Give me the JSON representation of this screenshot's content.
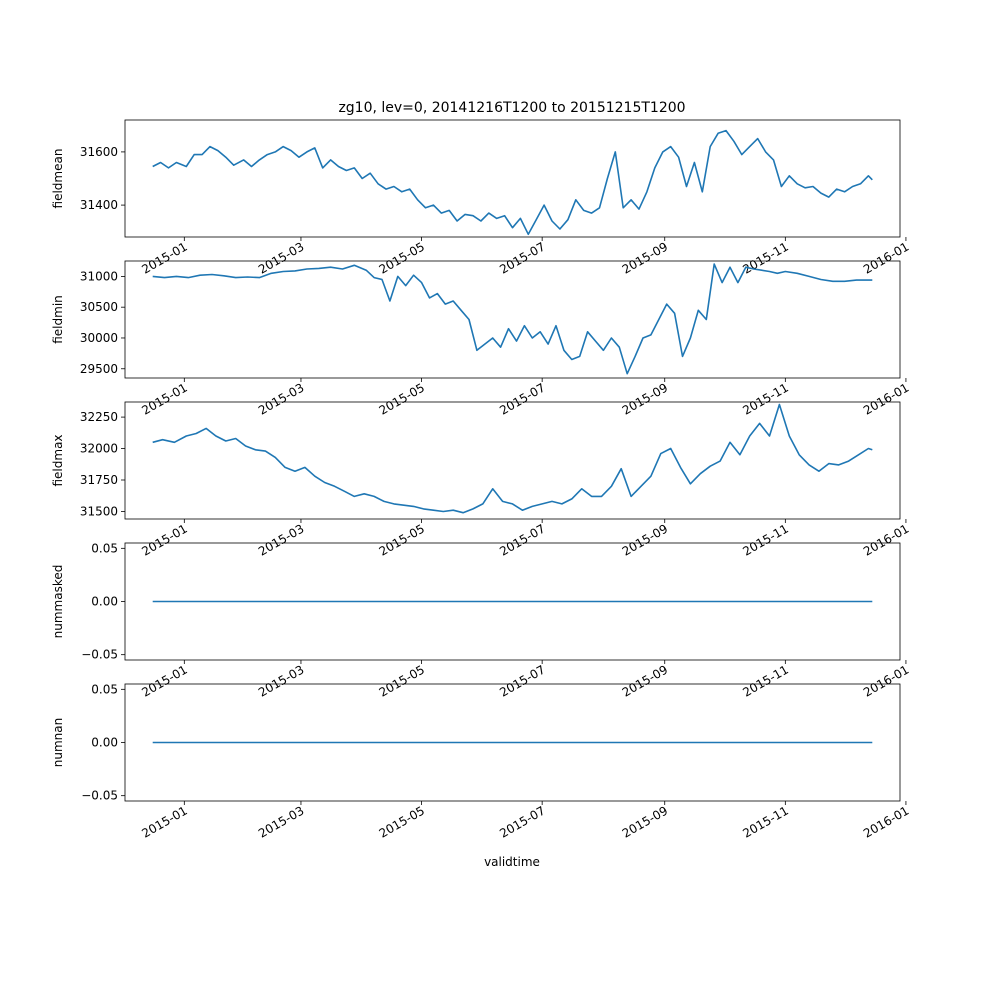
{
  "figure": {
    "title": "zg10, lev=0, 20141216T1200 to 20151215T1200",
    "xlabel": "validtime"
  },
  "chart_data": [
    {
      "type": "line",
      "ylabel": "fieldmean",
      "xlim": [
        "2014-12-02",
        "2015-12-29"
      ],
      "ylim": [
        31280,
        31720
      ],
      "yticks": [
        31400,
        31600
      ],
      "ytick_labels": [
        "31400",
        "31600"
      ],
      "xticks": [
        "2015-01-01",
        "2015-03-01",
        "2015-05-01",
        "2015-07-01",
        "2015-09-01",
        "2015-11-01",
        "2016-01-01"
      ],
      "xtick_labels": [
        "2015-01",
        "2015-03",
        "2015-05",
        "2015-07",
        "2015-09",
        "2015-11",
        "2016-01"
      ],
      "color": "#1f77b4",
      "points": [
        [
          "2014-12-16",
          31545
        ],
        [
          "2014-12-20",
          31560
        ],
        [
          "2014-12-24",
          31540
        ],
        [
          "2014-12-28",
          31560
        ],
        [
          "2015-01-02",
          31545
        ],
        [
          "2015-01-06",
          31590
        ],
        [
          "2015-01-10",
          31590
        ],
        [
          "2015-01-14",
          31620
        ],
        [
          "2015-01-18",
          31605
        ],
        [
          "2015-01-22",
          31580
        ],
        [
          "2015-01-26",
          31550
        ],
        [
          "2015-01-31",
          31570
        ],
        [
          "2015-02-04",
          31545
        ],
        [
          "2015-02-08",
          31570
        ],
        [
          "2015-02-12",
          31590
        ],
        [
          "2015-02-16",
          31600
        ],
        [
          "2015-02-20",
          31620
        ],
        [
          "2015-02-24",
          31605
        ],
        [
          "2015-02-28",
          31580
        ],
        [
          "2015-03-04",
          31600
        ],
        [
          "2015-03-08",
          31615
        ],
        [
          "2015-03-12",
          31540
        ],
        [
          "2015-03-16",
          31570
        ],
        [
          "2015-03-20",
          31545
        ],
        [
          "2015-03-24",
          31530
        ],
        [
          "2015-03-28",
          31540
        ],
        [
          "2015-04-01",
          31500
        ],
        [
          "2015-04-05",
          31520
        ],
        [
          "2015-04-09",
          31480
        ],
        [
          "2015-04-13",
          31460
        ],
        [
          "2015-04-17",
          31470
        ],
        [
          "2015-04-21",
          31450
        ],
        [
          "2015-04-25",
          31460
        ],
        [
          "2015-04-29",
          31420
        ],
        [
          "2015-05-03",
          31390
        ],
        [
          "2015-05-07",
          31400
        ],
        [
          "2015-05-11",
          31370
        ],
        [
          "2015-05-15",
          31380
        ],
        [
          "2015-05-19",
          31340
        ],
        [
          "2015-05-23",
          31365
        ],
        [
          "2015-05-27",
          31360
        ],
        [
          "2015-05-31",
          31340
        ],
        [
          "2015-06-04",
          31370
        ],
        [
          "2015-06-08",
          31350
        ],
        [
          "2015-06-12",
          31360
        ],
        [
          "2015-06-16",
          31315
        ],
        [
          "2015-06-20",
          31350
        ],
        [
          "2015-06-24",
          31290
        ],
        [
          "2015-06-28",
          31345
        ],
        [
          "2015-07-02",
          31400
        ],
        [
          "2015-07-06",
          31340
        ],
        [
          "2015-07-10",
          31310
        ],
        [
          "2015-07-14",
          31345
        ],
        [
          "2015-07-18",
          31420
        ],
        [
          "2015-07-22",
          31380
        ],
        [
          "2015-07-26",
          31370
        ],
        [
          "2015-07-30",
          31390
        ],
        [
          "2015-08-03",
          31500
        ],
        [
          "2015-08-07",
          31600
        ],
        [
          "2015-08-11",
          31390
        ],
        [
          "2015-08-15",
          31420
        ],
        [
          "2015-08-19",
          31385
        ],
        [
          "2015-08-23",
          31450
        ],
        [
          "2015-08-27",
          31540
        ],
        [
          "2015-08-31",
          31600
        ],
        [
          "2015-09-04",
          31620
        ],
        [
          "2015-09-08",
          31580
        ],
        [
          "2015-09-12",
          31470
        ],
        [
          "2015-09-16",
          31560
        ],
        [
          "2015-09-20",
          31450
        ],
        [
          "2015-09-24",
          31620
        ],
        [
          "2015-09-28",
          31670
        ],
        [
          "2015-10-02",
          31680
        ],
        [
          "2015-10-06",
          31640
        ],
        [
          "2015-10-10",
          31590
        ],
        [
          "2015-10-14",
          31620
        ],
        [
          "2015-10-18",
          31650
        ],
        [
          "2015-10-22",
          31600
        ],
        [
          "2015-10-26",
          31570
        ],
        [
          "2015-10-30",
          31470
        ],
        [
          "2015-11-03",
          31510
        ],
        [
          "2015-11-07",
          31480
        ],
        [
          "2015-11-11",
          31465
        ],
        [
          "2015-11-15",
          31470
        ],
        [
          "2015-11-19",
          31445
        ],
        [
          "2015-11-23",
          31430
        ],
        [
          "2015-11-27",
          31460
        ],
        [
          "2015-12-01",
          31450
        ],
        [
          "2015-12-05",
          31470
        ],
        [
          "2015-12-09",
          31480
        ],
        [
          "2015-12-13",
          31510
        ],
        [
          "2015-12-15",
          31495
        ]
      ]
    },
    {
      "type": "line",
      "ylabel": "fieldmin",
      "xlim": [
        "2014-12-02",
        "2015-12-29"
      ],
      "ylim": [
        29350,
        31250
      ],
      "yticks": [
        29500,
        30000,
        30500,
        31000
      ],
      "ytick_labels": [
        "29500",
        "30000",
        "30500",
        "31000"
      ],
      "xticks": [
        "2015-01-01",
        "2015-03-01",
        "2015-05-01",
        "2015-07-01",
        "2015-09-01",
        "2015-11-01",
        "2016-01-01"
      ],
      "xtick_labels": [
        "2015-01",
        "2015-03",
        "2015-05",
        "2015-07",
        "2015-09",
        "2015-11",
        "2016-01"
      ],
      "color": "#1f77b4",
      "points": [
        [
          "2014-12-16",
          31000
        ],
        [
          "2014-12-22",
          30980
        ],
        [
          "2014-12-28",
          31000
        ],
        [
          "2015-01-03",
          30980
        ],
        [
          "2015-01-09",
          31020
        ],
        [
          "2015-01-15",
          31030
        ],
        [
          "2015-01-21",
          31010
        ],
        [
          "2015-01-27",
          30980
        ],
        [
          "2015-02-02",
          30990
        ],
        [
          "2015-02-08",
          30980
        ],
        [
          "2015-02-14",
          31050
        ],
        [
          "2015-02-20",
          31080
        ],
        [
          "2015-02-26",
          31090
        ],
        [
          "2015-03-04",
          31120
        ],
        [
          "2015-03-10",
          31130
        ],
        [
          "2015-03-16",
          31150
        ],
        [
          "2015-03-22",
          31120
        ],
        [
          "2015-03-28",
          31180
        ],
        [
          "2015-04-03",
          31100
        ],
        [
          "2015-04-07",
          30980
        ],
        [
          "2015-04-11",
          30950
        ],
        [
          "2015-04-15",
          30600
        ],
        [
          "2015-04-19",
          31000
        ],
        [
          "2015-04-23",
          30850
        ],
        [
          "2015-04-27",
          31020
        ],
        [
          "2015-05-01",
          30900
        ],
        [
          "2015-05-05",
          30650
        ],
        [
          "2015-05-09",
          30720
        ],
        [
          "2015-05-13",
          30550
        ],
        [
          "2015-05-17",
          30600
        ],
        [
          "2015-05-21",
          30450
        ],
        [
          "2015-05-25",
          30300
        ],
        [
          "2015-05-29",
          29800
        ],
        [
          "2015-06-02",
          29900
        ],
        [
          "2015-06-06",
          30000
        ],
        [
          "2015-06-10",
          29850
        ],
        [
          "2015-06-14",
          30150
        ],
        [
          "2015-06-18",
          29950
        ],
        [
          "2015-06-22",
          30200
        ],
        [
          "2015-06-26",
          30000
        ],
        [
          "2015-06-30",
          30100
        ],
        [
          "2015-07-04",
          29900
        ],
        [
          "2015-07-08",
          30200
        ],
        [
          "2015-07-12",
          29800
        ],
        [
          "2015-07-16",
          29650
        ],
        [
          "2015-07-20",
          29700
        ],
        [
          "2015-07-24",
          30100
        ],
        [
          "2015-07-28",
          29950
        ],
        [
          "2015-08-01",
          29800
        ],
        [
          "2015-08-05",
          30000
        ],
        [
          "2015-08-09",
          29850
        ],
        [
          "2015-08-13",
          29420
        ],
        [
          "2015-08-17",
          29700
        ],
        [
          "2015-08-21",
          30000
        ],
        [
          "2015-08-25",
          30050
        ],
        [
          "2015-08-29",
          30300
        ],
        [
          "2015-09-02",
          30550
        ],
        [
          "2015-09-06",
          30400
        ],
        [
          "2015-09-10",
          29700
        ],
        [
          "2015-09-14",
          30000
        ],
        [
          "2015-09-18",
          30450
        ],
        [
          "2015-09-22",
          30300
        ],
        [
          "2015-09-26",
          31200
        ],
        [
          "2015-09-30",
          30900
        ],
        [
          "2015-10-04",
          31150
        ],
        [
          "2015-10-08",
          30900
        ],
        [
          "2015-10-12",
          31150
        ],
        [
          "2015-10-16",
          31120
        ],
        [
          "2015-10-20",
          31100
        ],
        [
          "2015-10-24",
          31080
        ],
        [
          "2015-10-28",
          31050
        ],
        [
          "2015-11-01",
          31080
        ],
        [
          "2015-11-07",
          31050
        ],
        [
          "2015-11-13",
          31000
        ],
        [
          "2015-11-19",
          30950
        ],
        [
          "2015-11-25",
          30920
        ],
        [
          "2015-12-01",
          30920
        ],
        [
          "2015-12-07",
          30940
        ],
        [
          "2015-12-15",
          30940
        ]
      ]
    },
    {
      "type": "line",
      "ylabel": "fieldmax",
      "xlim": [
        "2014-12-02",
        "2015-12-29"
      ],
      "ylim": [
        31440,
        32370
      ],
      "yticks": [
        31500,
        31750,
        32000,
        32250
      ],
      "ytick_labels": [
        "31500",
        "31750",
        "32000",
        "32250"
      ],
      "xticks": [
        "2015-01-01",
        "2015-03-01",
        "2015-05-01",
        "2015-07-01",
        "2015-09-01",
        "2015-11-01",
        "2016-01-01"
      ],
      "xtick_labels": [
        "2015-01",
        "2015-03",
        "2015-05",
        "2015-07",
        "2015-09",
        "2015-11",
        "2016-01"
      ],
      "color": "#1f77b4",
      "points": [
        [
          "2014-12-16",
          32050
        ],
        [
          "2014-12-21",
          32070
        ],
        [
          "2014-12-27",
          32050
        ],
        [
          "2015-01-02",
          32100
        ],
        [
          "2015-01-07",
          32120
        ],
        [
          "2015-01-12",
          32160
        ],
        [
          "2015-01-17",
          32100
        ],
        [
          "2015-01-22",
          32060
        ],
        [
          "2015-01-27",
          32080
        ],
        [
          "2015-02-01",
          32020
        ],
        [
          "2015-02-06",
          31990
        ],
        [
          "2015-02-11",
          31980
        ],
        [
          "2015-02-16",
          31930
        ],
        [
          "2015-02-21",
          31850
        ],
        [
          "2015-02-26",
          31820
        ],
        [
          "2015-03-03",
          31850
        ],
        [
          "2015-03-08",
          31780
        ],
        [
          "2015-03-13",
          31730
        ],
        [
          "2015-03-18",
          31700
        ],
        [
          "2015-03-23",
          31660
        ],
        [
          "2015-03-28",
          31620
        ],
        [
          "2015-04-02",
          31640
        ],
        [
          "2015-04-07",
          31620
        ],
        [
          "2015-04-12",
          31580
        ],
        [
          "2015-04-17",
          31560
        ],
        [
          "2015-04-22",
          31550
        ],
        [
          "2015-04-27",
          31540
        ],
        [
          "2015-05-02",
          31520
        ],
        [
          "2015-05-07",
          31510
        ],
        [
          "2015-05-12",
          31500
        ],
        [
          "2015-05-17",
          31510
        ],
        [
          "2015-05-22",
          31490
        ],
        [
          "2015-05-27",
          31520
        ],
        [
          "2015-06-01",
          31560
        ],
        [
          "2015-06-06",
          31680
        ],
        [
          "2015-06-11",
          31580
        ],
        [
          "2015-06-16",
          31560
        ],
        [
          "2015-06-21",
          31510
        ],
        [
          "2015-06-26",
          31540
        ],
        [
          "2015-07-01",
          31560
        ],
        [
          "2015-07-06",
          31580
        ],
        [
          "2015-07-11",
          31560
        ],
        [
          "2015-07-16",
          31600
        ],
        [
          "2015-07-21",
          31680
        ],
        [
          "2015-07-26",
          31620
        ],
        [
          "2015-07-31",
          31620
        ],
        [
          "2015-08-05",
          31700
        ],
        [
          "2015-08-10",
          31840
        ],
        [
          "2015-08-15",
          31620
        ],
        [
          "2015-08-20",
          31700
        ],
        [
          "2015-08-25",
          31780
        ],
        [
          "2015-08-30",
          31960
        ],
        [
          "2015-09-04",
          32000
        ],
        [
          "2015-09-09",
          31850
        ],
        [
          "2015-09-14",
          31720
        ],
        [
          "2015-09-19",
          31800
        ],
        [
          "2015-09-24",
          31860
        ],
        [
          "2015-09-29",
          31900
        ],
        [
          "2015-10-04",
          32050
        ],
        [
          "2015-10-09",
          31950
        ],
        [
          "2015-10-14",
          32100
        ],
        [
          "2015-10-19",
          32200
        ],
        [
          "2015-10-24",
          32100
        ],
        [
          "2015-10-29",
          32350
        ],
        [
          "2015-11-03",
          32100
        ],
        [
          "2015-11-08",
          31950
        ],
        [
          "2015-11-13",
          31870
        ],
        [
          "2015-11-18",
          31820
        ],
        [
          "2015-11-23",
          31880
        ],
        [
          "2015-11-28",
          31870
        ],
        [
          "2015-12-03",
          31900
        ],
        [
          "2015-12-08",
          31950
        ],
        [
          "2015-12-13",
          32000
        ],
        [
          "2015-12-15",
          31990
        ]
      ]
    },
    {
      "type": "line",
      "ylabel": "nummasked",
      "xlim": [
        "2014-12-02",
        "2015-12-29"
      ],
      "ylim": [
        -0.055,
        0.055
      ],
      "yticks": [
        -0.05,
        0.0,
        0.05
      ],
      "ytick_labels": [
        "−0.05",
        "0.00",
        "0.05"
      ],
      "xticks": [
        "2015-01-01",
        "2015-03-01",
        "2015-05-01",
        "2015-07-01",
        "2015-09-01",
        "2015-11-01",
        "2016-01-01"
      ],
      "xtick_labels": [
        "2015-01",
        "2015-03",
        "2015-05",
        "2015-07",
        "2015-09",
        "2015-11",
        "2016-01"
      ],
      "color": "#1f77b4",
      "points": [
        [
          "2014-12-16",
          0.0
        ],
        [
          "2015-12-15",
          0.0
        ]
      ]
    },
    {
      "type": "line",
      "ylabel": "numnan",
      "xlim": [
        "2014-12-02",
        "2015-12-29"
      ],
      "ylim": [
        -0.055,
        0.055
      ],
      "yticks": [
        -0.05,
        0.0,
        0.05
      ],
      "ytick_labels": [
        "−0.05",
        "0.00",
        "0.05"
      ],
      "xticks": [
        "2015-01-01",
        "2015-03-01",
        "2015-05-01",
        "2015-07-01",
        "2015-09-01",
        "2015-11-01",
        "2016-01-01"
      ],
      "xtick_labels": [
        "2015-01",
        "2015-03",
        "2015-05",
        "2015-07",
        "2015-09",
        "2015-11",
        "2016-01"
      ],
      "color": "#1f77b4",
      "points": [
        [
          "2014-12-16",
          0.0
        ],
        [
          "2015-12-15",
          0.0
        ]
      ]
    }
  ]
}
